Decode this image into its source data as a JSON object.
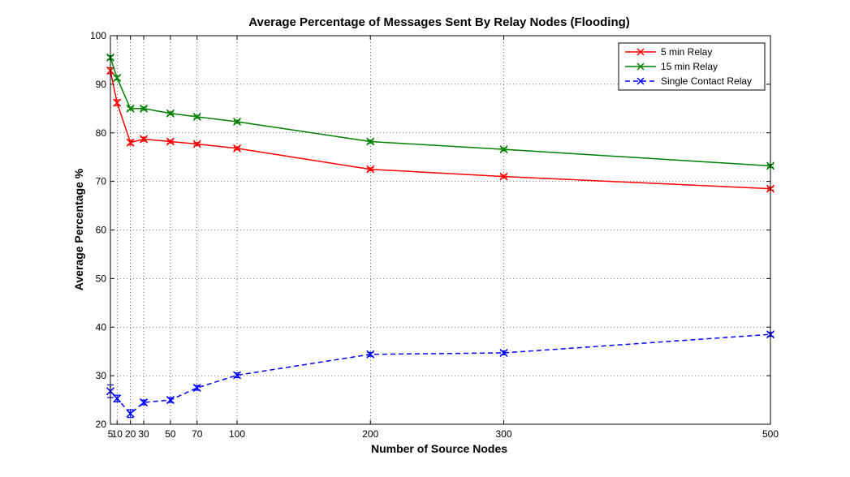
{
  "chart_data": {
    "type": "line",
    "title": "Average Percentage of Messages Sent By Relay Nodes (Flooding)",
    "xlabel": "Number of Source Nodes",
    "ylabel": "Average Percentage %",
    "x": [
      5,
      10,
      20,
      30,
      50,
      70,
      100,
      200,
      300,
      500
    ],
    "x_ticks": [
      5,
      10,
      20,
      30,
      50,
      70,
      100,
      200,
      300,
      500
    ],
    "x_tick_labels": [
      "5",
      "10",
      "20",
      "30",
      "50",
      "70",
      "100",
      "200",
      "300",
      "500"
    ],
    "xlim": [
      5,
      500
    ],
    "ylim": [
      20,
      100
    ],
    "y_ticks": [
      20,
      30,
      40,
      50,
      60,
      70,
      80,
      90,
      100
    ],
    "grid": true,
    "legend_position": "top-right",
    "series": [
      {
        "name": "5 min Relay",
        "color": "#ff0000",
        "line_style": "solid",
        "marker": "x",
        "values": [
          92.8,
          86.2,
          78.0,
          78.7,
          78.2,
          77.7,
          76.8,
          72.5,
          71.0,
          68.5
        ],
        "error": [
          0.6,
          0.6,
          0.5,
          0.4,
          0.3,
          0.3,
          0.3,
          0.3,
          0.3,
          0.3
        ]
      },
      {
        "name": "15 min Relay",
        "color": "#008000",
        "line_style": "solid",
        "marker": "x",
        "values": [
          95.5,
          91.3,
          85.0,
          85.0,
          84.0,
          83.3,
          82.3,
          78.2,
          76.6,
          73.2
        ],
        "error": [
          0.4,
          0.4,
          0.3,
          0.3,
          0.3,
          0.3,
          0.3,
          0.3,
          0.3,
          0.3
        ]
      },
      {
        "name": "Single Contact Relay",
        "color": "#0000ff",
        "line_style": "dashed",
        "marker": "x",
        "values": [
          26.8,
          25.3,
          22.2,
          24.5,
          25.0,
          27.5,
          30.1,
          34.4,
          34.7,
          38.5
        ],
        "error": [
          1.3,
          0.7,
          0.8,
          0.5,
          0.5,
          0.5,
          0.5,
          0.4,
          0.4,
          0.4
        ]
      }
    ]
  }
}
